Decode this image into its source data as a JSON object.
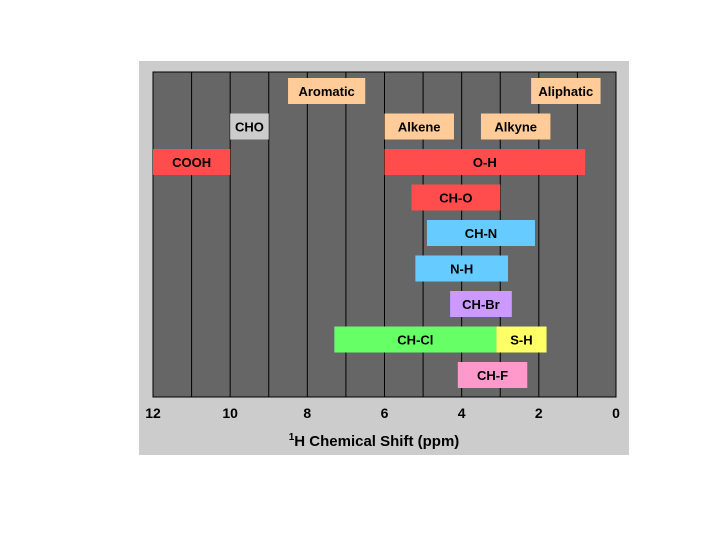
{
  "chart_data": {
    "type": "bar",
    "orientation": "horizontal-range",
    "title": "",
    "xlabel_superscript": "1",
    "xlabel": "H Chemical Shift (ppm)",
    "ylabel": "",
    "xlim": [
      12,
      0
    ],
    "x_reversed": true,
    "xticks": [
      "12",
      "10",
      "8",
      "6",
      "4",
      "2",
      "0"
    ],
    "grid": true,
    "legend": "none",
    "colors": {
      "background": "#cccccc",
      "plot": "#666666",
      "gridline": "#000000",
      "region": "#ffcc99",
      "cho": "#cccccc",
      "red": "#ff4d4d",
      "blue": "#66ccff",
      "purple": "#cc99ff",
      "green": "#66ff66",
      "yellow": "#ffff66",
      "pink": "#ff99cc"
    },
    "series": [
      {
        "label": "Aromatic",
        "from": 8.5,
        "to": 6.5,
        "row": 0,
        "color": "#ffcc99"
      },
      {
        "label": "Aliphatic",
        "from": 2.2,
        "to": 0.4,
        "row": 0,
        "color": "#ffcc99"
      },
      {
        "label": "CHO",
        "from": 10.0,
        "to": 9.0,
        "row": 1,
        "color": "#cccccc"
      },
      {
        "label": "Alkene",
        "from": 6.0,
        "to": 4.2,
        "row": 1,
        "color": "#ffcc99"
      },
      {
        "label": "Alkyne",
        "from": 3.5,
        "to": 1.7,
        "row": 1,
        "color": "#ffcc99"
      },
      {
        "label": "COOH",
        "from": 12.0,
        "to": 10.0,
        "row": 2,
        "color": "#ff4d4d"
      },
      {
        "label": "O-H",
        "from": 6.0,
        "to": 0.8,
        "row": 2,
        "color": "#ff4d4d"
      },
      {
        "label": "CH-O",
        "from": 5.3,
        "to": 3.0,
        "row": 3,
        "color": "#ff4d4d"
      },
      {
        "label": "CH-N",
        "from": 4.9,
        "to": 2.1,
        "row": 4,
        "color": "#66ccff"
      },
      {
        "label": "N-H",
        "from": 5.2,
        "to": 2.8,
        "row": 5,
        "color": "#66ccff"
      },
      {
        "label": "CH-Br",
        "from": 4.3,
        "to": 2.7,
        "row": 6,
        "color": "#cc99ff"
      },
      {
        "label": "CH-Cl",
        "from": 7.3,
        "to": 3.1,
        "row": 7,
        "color": "#66ff66"
      },
      {
        "label": "S-H",
        "from": 3.1,
        "to": 1.8,
        "row": 7,
        "color": "#ffff66"
      },
      {
        "label": "CH-F",
        "from": 4.1,
        "to": 2.3,
        "row": 8,
        "color": "#ff99cc"
      }
    ]
  }
}
